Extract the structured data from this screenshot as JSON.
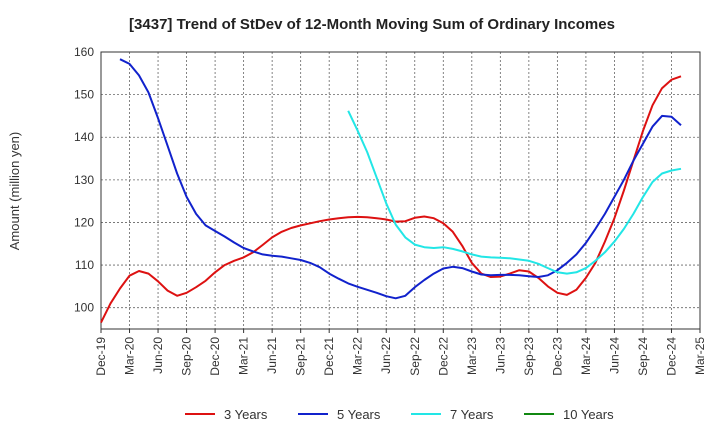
{
  "chart_data": {
    "type": "line",
    "title": "[3437]  Trend of StDev of 12-Month Moving Sum of Ordinary Incomes",
    "xlabel": "",
    "ylabel": "Amount (million yen)",
    "ylim": [
      95,
      160
    ],
    "yticks": [
      100,
      110,
      120,
      130,
      140,
      150,
      160
    ],
    "x_range": [
      "2019-12",
      "2025-03"
    ],
    "xticks": [
      "Dec-19",
      "Mar-20",
      "Jun-20",
      "Sep-20",
      "Dec-20",
      "Mar-21",
      "Jun-21",
      "Sep-21",
      "Dec-21",
      "Mar-22",
      "Jun-22",
      "Sep-22",
      "Dec-22",
      "Mar-23",
      "Jun-23",
      "Sep-23",
      "Dec-23",
      "Mar-24",
      "Jun-24",
      "Sep-24",
      "Dec-24",
      "Mar-25"
    ],
    "grid": true,
    "legend_position": "bottom",
    "series": [
      {
        "name": "3 Years",
        "color": "#dd1111",
        "points": [
          [
            "2019-12",
            96.5
          ],
          [
            "2020-01",
            101
          ],
          [
            "2020-02",
            104.5
          ],
          [
            "2020-03",
            107.5
          ],
          [
            "2020-04",
            108.6
          ],
          [
            "2020-05",
            108
          ],
          [
            "2020-06",
            106.2
          ],
          [
            "2020-07",
            104
          ],
          [
            "2020-08",
            102.8
          ],
          [
            "2020-09",
            103.5
          ],
          [
            "2020-10",
            104.8
          ],
          [
            "2020-11",
            106.3
          ],
          [
            "2020-12",
            108.3
          ],
          [
            "2020-01-01",
            null
          ],
          [
            "2021-01",
            110
          ],
          [
            "2021-02",
            111
          ],
          [
            "2021-03",
            111.8
          ],
          [
            "2021-04",
            113
          ],
          [
            "2021-05",
            114.7
          ],
          [
            "2021-06",
            116.5
          ],
          [
            "2021-07",
            117.8
          ],
          [
            "2021-08",
            118.7
          ],
          [
            "2021-09",
            119.3
          ],
          [
            "2021-10",
            119.8
          ],
          [
            "2021-11",
            120.3
          ],
          [
            "2021-12",
            120.7
          ],
          [
            "2022-01",
            121
          ],
          [
            "2022-02",
            121.2
          ],
          [
            "2022-03",
            121.3
          ],
          [
            "2022-04",
            121.2
          ],
          [
            "2022-05",
            121
          ],
          [
            "2022-06",
            120.7
          ],
          [
            "2022-07",
            120.2
          ],
          [
            "2022-08",
            120.3
          ],
          [
            "2022-09",
            121.1
          ],
          [
            "2022-10",
            121.4
          ],
          [
            "2022-11",
            121
          ],
          [
            "2022-12",
            119.8
          ],
          [
            "2023-01",
            117.8
          ],
          [
            "2023-02",
            114.5
          ],
          [
            "2023-03",
            110.5
          ],
          [
            "2023-04",
            108
          ],
          [
            "2023-05",
            107.2
          ],
          [
            "2023-06",
            107.3
          ],
          [
            "2023-07",
            108
          ],
          [
            "2023-08",
            108.8
          ],
          [
            "2023-09",
            108.5
          ],
          [
            "2023-10",
            107
          ],
          [
            "2023-11",
            105
          ],
          [
            "2023-12",
            103.5
          ],
          [
            "2024-01",
            103
          ],
          [
            "2024-02",
            104.2
          ],
          [
            "2024-03",
            107
          ],
          [
            "2024-04",
            110.5
          ],
          [
            "2024-05",
            115.5
          ],
          [
            "2024-06",
            121
          ],
          [
            "2024-07",
            127.5
          ],
          [
            "2024-08",
            134.5
          ],
          [
            "2024-09",
            141.5
          ],
          [
            "2024-10",
            147.5
          ],
          [
            "2024-11",
            151.5
          ],
          [
            "2024-12",
            153.5
          ],
          [
            "2025-01",
            154.3
          ]
        ]
      },
      {
        "name": "5 Years",
        "color": "#1122cc",
        "points": [
          [
            "2020-02",
            158.3
          ],
          [
            "2020-03",
            157.2
          ],
          [
            "2020-04",
            154.5
          ],
          [
            "2020-05",
            150.5
          ],
          [
            "2020-06",
            144.5
          ],
          [
            "2020-07",
            138
          ],
          [
            "2020-08",
            131.5
          ],
          [
            "2020-09",
            126
          ],
          [
            "2020-10",
            122
          ],
          [
            "2020-11",
            119.3
          ],
          [
            "2020-12",
            118
          ],
          [
            "2021-01",
            116.7
          ],
          [
            "2021-02",
            115.3
          ],
          [
            "2021-03",
            114
          ],
          [
            "2021-04",
            113.2
          ],
          [
            "2021-05",
            112.5
          ],
          [
            "2021-06",
            112.2
          ],
          [
            "2021-07",
            112
          ],
          [
            "2021-08",
            111.6
          ],
          [
            "2021-09",
            111.2
          ],
          [
            "2021-10",
            110.5
          ],
          [
            "2021-11",
            109.5
          ],
          [
            "2021-12",
            108
          ],
          [
            "2022-01",
            106.8
          ],
          [
            "2022-02",
            105.7
          ],
          [
            "2022-03",
            104.9
          ],
          [
            "2022-04",
            104.2
          ],
          [
            "2022-05",
            103.5
          ],
          [
            "2022-06",
            102.7
          ],
          [
            "2022-07",
            102.2
          ],
          [
            "2022-08",
            102.8
          ],
          [
            "2022-09",
            104.8
          ],
          [
            "2022-10",
            106.5
          ],
          [
            "2022-11",
            108
          ],
          [
            "2022-12",
            109.2
          ],
          [
            "2023-01",
            109.6
          ],
          [
            "2023-02",
            109.3
          ],
          [
            "2023-03",
            108.5
          ],
          [
            "2023-04",
            107.8
          ],
          [
            "2023-05",
            107.6
          ],
          [
            "2023-06",
            107.7
          ],
          [
            "2023-07",
            107.7
          ],
          [
            "2023-08",
            107.6
          ],
          [
            "2023-09",
            107.4
          ],
          [
            "2023-10",
            107.2
          ],
          [
            "2023-11",
            107.6
          ],
          [
            "2023-12",
            108.8
          ],
          [
            "2024-01",
            110.5
          ],
          [
            "2024-02",
            112.5
          ],
          [
            "2024-03",
            115.2
          ],
          [
            "2024-04",
            118.5
          ],
          [
            "2024-05",
            122
          ],
          [
            "2024-06",
            126
          ],
          [
            "2024-07",
            130
          ],
          [
            "2024-08",
            134.5
          ],
          [
            "2024-09",
            138.5
          ],
          [
            "2024-10",
            142.5
          ],
          [
            "2024-11",
            145
          ],
          [
            "2024-12",
            144.8
          ],
          [
            "2025-01",
            142.8
          ]
        ]
      },
      {
        "name": "7 Years",
        "color": "#22e6e6",
        "points": [
          [
            "2022-02",
            146.2
          ],
          [
            "2022-03",
            141.5
          ],
          [
            "2022-04",
            136.5
          ],
          [
            "2022-05",
            130.5
          ],
          [
            "2022-06",
            124.5
          ],
          [
            "2022-07",
            119.5
          ],
          [
            "2022-08",
            116.5
          ],
          [
            "2022-09",
            114.8
          ],
          [
            "2022-10",
            114.2
          ],
          [
            "2022-11",
            114
          ],
          [
            "2022-12",
            114.2
          ],
          [
            "2023-01",
            113.8
          ],
          [
            "2023-02",
            113.2
          ],
          [
            "2023-03",
            112.5
          ],
          [
            "2023-04",
            112
          ],
          [
            "2023-05",
            111.8
          ],
          [
            "2023-06",
            111.7
          ],
          [
            "2023-07",
            111.6
          ],
          [
            "2023-08",
            111.3
          ],
          [
            "2023-09",
            111
          ],
          [
            "2023-10",
            110.3
          ],
          [
            "2023-11",
            109.3
          ],
          [
            "2023-12",
            108.3
          ],
          [
            "2024-01",
            108
          ],
          [
            "2024-02",
            108.3
          ],
          [
            "2024-03",
            109.3
          ],
          [
            "2024-04",
            111
          ],
          [
            "2024-05",
            113
          ],
          [
            "2024-06",
            115.5
          ],
          [
            "2024-07",
            118.5
          ],
          [
            "2024-08",
            122
          ],
          [
            "2024-09",
            126
          ],
          [
            "2024-10",
            129.5
          ],
          [
            "2024-11",
            131.5
          ],
          [
            "2024-12",
            132.2
          ],
          [
            "2025-01",
            132.6
          ]
        ]
      },
      {
        "name": "10 Years",
        "color": "#118811",
        "points": []
      }
    ]
  }
}
